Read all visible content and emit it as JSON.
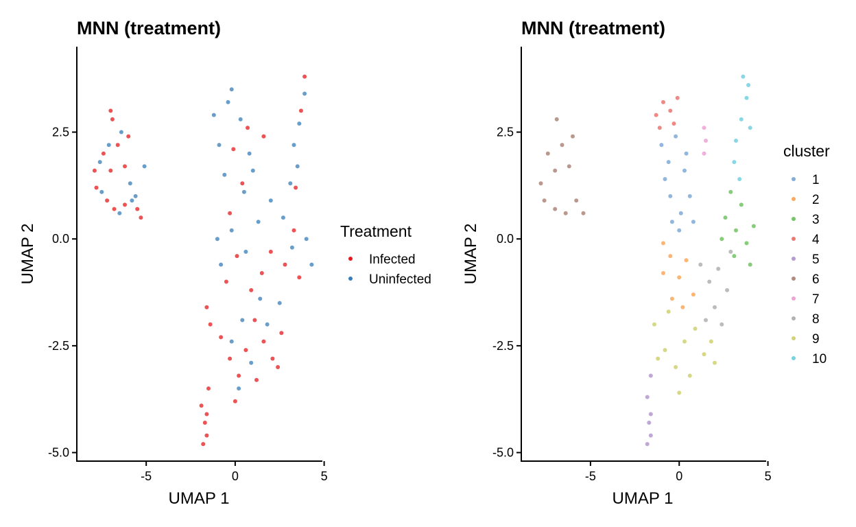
{
  "chart_data": [
    {
      "type": "scatter",
      "title": "MNN (treatment)",
      "xlabel": "UMAP 1",
      "ylabel": "UMAP 2",
      "xlim": [
        -8.9,
        4.9
      ],
      "ylim": [
        -5.2,
        4.5
      ],
      "x_ticks": [
        "-5",
        "0",
        "5"
      ],
      "x_tick_values": [
        -5,
        0,
        5
      ],
      "y_ticks": [
        "2.5",
        "0.0",
        "-2.5",
        "-5.0"
      ],
      "y_tick_values": [
        2.5,
        0.0,
        -2.5,
        -5.0
      ],
      "grid": false,
      "legend": {
        "title": "Treatment",
        "position": "right",
        "entries": [
          {
            "label": "Infected",
            "color": "#E41A1C"
          },
          {
            "label": "Uninfected",
            "color": "#377EB8"
          }
        ]
      },
      "series": [
        {
          "name": "Infected",
          "color": "#E41A1C",
          "points": [
            [
              -7.8,
              1.2
            ],
            [
              -7.4,
              2.0
            ],
            [
              -7.0,
              1.6
            ],
            [
              -6.6,
              2.2
            ],
            [
              -6.2,
              1.7
            ],
            [
              -6.0,
              2.4
            ],
            [
              -7.9,
              1.6
            ],
            [
              -7.2,
              0.9
            ],
            [
              -6.8,
              0.7
            ],
            [
              -6.2,
              0.8
            ],
            [
              -5.5,
              0.7
            ],
            [
              -5.3,
              0.5
            ],
            [
              -6.9,
              2.8
            ],
            [
              -7.0,
              3.0
            ],
            [
              -1.7,
              -4.3
            ],
            [
              -1.6,
              -4.6
            ],
            [
              -1.8,
              -4.8
            ],
            [
              -1.6,
              -4.1
            ],
            [
              -1.9,
              -3.9
            ],
            [
              -1.5,
              -3.5
            ],
            [
              -0.8,
              -2.3
            ],
            [
              -0.3,
              -2.8
            ],
            [
              0.2,
              -3.2
            ],
            [
              0.6,
              -2.6
            ],
            [
              1.1,
              -1.9
            ],
            [
              1.6,
              -2.4
            ],
            [
              2.1,
              -2.8
            ],
            [
              2.4,
              -3.0
            ],
            [
              0.9,
              -1.2
            ],
            [
              1.5,
              -0.8
            ],
            [
              2.0,
              -0.3
            ],
            [
              2.8,
              -0.6
            ],
            [
              3.3,
              0.2
            ],
            [
              3.6,
              -0.9
            ],
            [
              -0.5,
              -1.0
            ],
            [
              0.1,
              -0.4
            ],
            [
              -0.3,
              0.6
            ],
            [
              0.4,
              1.3
            ],
            [
              -0.1,
              2.1
            ],
            [
              0.7,
              2.6
            ],
            [
              1.6,
              2.4
            ],
            [
              3.4,
              1.2
            ],
            [
              3.7,
              3.0
            ],
            [
              3.9,
              3.8
            ],
            [
              -1.6,
              -1.6
            ],
            [
              -1.4,
              -2.0
            ],
            [
              0.0,
              -3.8
            ],
            [
              1.2,
              -3.3
            ],
            [
              2.6,
              -2.2
            ]
          ]
        },
        {
          "name": "Uninfected",
          "color": "#377EB8",
          "points": [
            [
              -7.6,
              1.8
            ],
            [
              -7.1,
              2.2
            ],
            [
              -6.4,
              2.5
            ],
            [
              -5.9,
              1.3
            ],
            [
              -5.6,
              1.0
            ],
            [
              -5.1,
              1.7
            ],
            [
              -6.5,
              0.6
            ],
            [
              -7.5,
              1.1
            ],
            [
              -5.8,
              0.9
            ],
            [
              -1.2,
              2.9
            ],
            [
              -0.9,
              2.2
            ],
            [
              -0.4,
              3.2
            ],
            [
              -0.2,
              3.5
            ],
            [
              0.3,
              2.8
            ],
            [
              0.8,
              2.0
            ],
            [
              0.5,
              1.1
            ],
            [
              -0.2,
              0.2
            ],
            [
              0.6,
              -0.3
            ],
            [
              1.3,
              0.4
            ],
            [
              2.0,
              0.9
            ],
            [
              2.7,
              0.5
            ],
            [
              3.2,
              -0.2
            ],
            [
              4.0,
              0.0
            ],
            [
              4.3,
              -0.6
            ],
            [
              3.3,
              2.2
            ],
            [
              3.6,
              2.7
            ],
            [
              3.9,
              3.4
            ],
            [
              3.5,
              1.7
            ],
            [
              3.1,
              1.3
            ],
            [
              1.4,
              -1.4
            ],
            [
              0.4,
              -1.9
            ],
            [
              -0.2,
              -2.4
            ],
            [
              0.2,
              -3.5
            ],
            [
              0.9,
              -2.9
            ],
            [
              1.8,
              -2.0
            ],
            [
              2.5,
              -1.5
            ],
            [
              -0.6,
              1.5
            ],
            [
              -1.0,
              0.0
            ],
            [
              1.0,
              1.6
            ],
            [
              -0.8,
              -0.6
            ]
          ]
        }
      ]
    },
    {
      "type": "scatter",
      "title": "MNN (treatment)",
      "xlabel": "UMAP 1",
      "ylabel": "UMAP 2",
      "xlim": [
        -8.9,
        4.9
      ],
      "ylim": [
        -5.2,
        4.5
      ],
      "x_ticks": [
        "-5",
        "0",
        "5"
      ],
      "x_tick_values": [
        -5,
        0,
        5
      ],
      "y_ticks": [
        "2.5",
        "0.0",
        "-2.5",
        "-5.0"
      ],
      "y_tick_values": [
        2.5,
        0.0,
        -2.5,
        -5.0
      ],
      "grid": false,
      "legend": {
        "title": "cluster",
        "position": "right",
        "entries": [
          {
            "label": "1",
            "color": "#6F9FD0"
          },
          {
            "label": "2",
            "color": "#F99C45"
          },
          {
            "label": "3",
            "color": "#5DBB4E"
          },
          {
            "label": "4",
            "color": "#E8625C"
          },
          {
            "label": "5",
            "color": "#A98AC8"
          },
          {
            "label": "6",
            "color": "#A47667"
          },
          {
            "label": "7",
            "color": "#E995CC"
          },
          {
            "label": "8",
            "color": "#A5A5A5"
          },
          {
            "label": "9",
            "color": "#CACB5E"
          },
          {
            "label": "10",
            "color": "#62CADB"
          }
        ]
      },
      "series": [
        {
          "name": "1",
          "color": "#6F9FD0",
          "points": [
            [
              -1.0,
              2.2
            ],
            [
              -0.6,
              1.8
            ],
            [
              -0.2,
              2.4
            ],
            [
              0.3,
              1.6
            ],
            [
              -0.5,
              1.0
            ],
            [
              0.1,
              0.6
            ],
            [
              0.6,
              1.0
            ],
            [
              -0.8,
              1.4
            ],
            [
              0.4,
              2.0
            ],
            [
              0.0,
              0.2
            ],
            [
              -0.4,
              0.4
            ],
            [
              0.8,
              0.4
            ]
          ]
        },
        {
          "name": "2",
          "color": "#F99C45",
          "points": [
            [
              -0.9,
              -0.8
            ],
            [
              -0.5,
              -0.4
            ],
            [
              0.0,
              -0.9
            ],
            [
              0.4,
              -0.5
            ],
            [
              0.8,
              -1.3
            ],
            [
              -0.4,
              -1.4
            ],
            [
              0.2,
              -1.6
            ],
            [
              -0.9,
              -0.1
            ]
          ]
        },
        {
          "name": "3",
          "color": "#5DBB4E",
          "points": [
            [
              2.6,
              0.5
            ],
            [
              3.2,
              0.2
            ],
            [
              3.8,
              -0.1
            ],
            [
              4.2,
              0.3
            ],
            [
              3.5,
              0.8
            ],
            [
              2.9,
              1.1
            ],
            [
              4.0,
              -0.6
            ],
            [
              3.1,
              -0.4
            ],
            [
              2.4,
              0.0
            ]
          ]
        },
        {
          "name": "4",
          "color": "#E8625C",
          "points": [
            [
              -1.3,
              2.9
            ],
            [
              -0.9,
              3.2
            ],
            [
              -0.5,
              3.0
            ],
            [
              -0.1,
              3.3
            ],
            [
              -1.1,
              2.6
            ],
            [
              -0.3,
              2.7
            ]
          ]
        },
        {
          "name": "5",
          "color": "#A98AC8",
          "points": [
            [
              -1.7,
              -4.3
            ],
            [
              -1.6,
              -4.6
            ],
            [
              -1.8,
              -4.8
            ],
            [
              -1.6,
              -4.1
            ],
            [
              -1.8,
              -3.7
            ],
            [
              -1.6,
              -3.2
            ]
          ]
        },
        {
          "name": "6",
          "color": "#A47667",
          "points": [
            [
              -7.8,
              1.3
            ],
            [
              -7.4,
              2.0
            ],
            [
              -7.0,
              1.6
            ],
            [
              -6.6,
              2.2
            ],
            [
              -6.2,
              1.7
            ],
            [
              -6.0,
              2.4
            ],
            [
              -7.6,
              0.9
            ],
            [
              -7.0,
              0.7
            ],
            [
              -6.4,
              0.6
            ],
            [
              -5.8,
              0.9
            ],
            [
              -5.4,
              0.6
            ],
            [
              -6.9,
              2.8
            ]
          ]
        },
        {
          "name": "7",
          "color": "#E995CC",
          "points": [
            [
              1.4,
              2.6
            ],
            [
              1.5,
              2.3
            ],
            [
              1.4,
              2.0
            ]
          ]
        },
        {
          "name": "8",
          "color": "#A5A5A5",
          "points": [
            [
              1.2,
              -0.6
            ],
            [
              1.7,
              -1.0
            ],
            [
              2.2,
              -0.7
            ],
            [
              2.7,
              -1.2
            ],
            [
              2.0,
              -1.6
            ],
            [
              1.5,
              -1.9
            ],
            [
              2.9,
              -0.3
            ],
            [
              2.4,
              -2.0
            ]
          ]
        },
        {
          "name": "9",
          "color": "#CACB5E",
          "points": [
            [
              -1.4,
              -2.0
            ],
            [
              -0.8,
              -2.6
            ],
            [
              -0.2,
              -3.0
            ],
            [
              0.3,
              -2.4
            ],
            [
              0.9,
              -2.1
            ],
            [
              1.4,
              -2.7
            ],
            [
              2.0,
              -2.9
            ],
            [
              0.0,
              -3.6
            ],
            [
              -0.6,
              -1.7
            ],
            [
              0.6,
              -3.2
            ],
            [
              1.8,
              -2.4
            ],
            [
              -1.2,
              -2.8
            ]
          ]
        },
        {
          "name": "10",
          "color": "#62CADB",
          "points": [
            [
              3.2,
              2.3
            ],
            [
              3.5,
              2.8
            ],
            [
              3.8,
              3.3
            ],
            [
              3.6,
              3.8
            ],
            [
              3.1,
              1.8
            ],
            [
              3.4,
              1.4
            ],
            [
              4.0,
              2.6
            ],
            [
              3.9,
              3.6
            ]
          ]
        }
      ]
    }
  ]
}
